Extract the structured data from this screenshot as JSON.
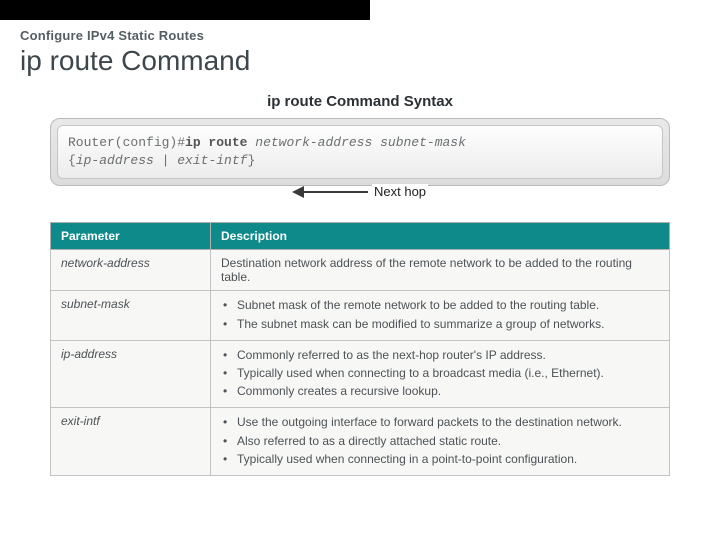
{
  "header": {
    "subheading": "Configure IPv4 Static Routes",
    "heading": "ip route Command"
  },
  "syntax_panel": {
    "title": "ip route Command Syntax",
    "prompt": "Router(config)#",
    "command_bold": "ip route",
    "args_italic": "network-address subnet-mask",
    "line2_open": "{",
    "line2_arg1": "ip-address",
    "line2_sep": " | ",
    "line2_arg2": "exit-intf",
    "line2_close": "}"
  },
  "annotation": {
    "label": "Next hop"
  },
  "param_table": {
    "header_bg": "#0e8a8a",
    "header_fg": "#ffffff",
    "row_bg": "#f7f7f5",
    "border_color": "#c3c3c3",
    "columns": [
      "Parameter",
      "Description"
    ],
    "rows": [
      {
        "param": "network-address",
        "desc_type": "text",
        "desc_text": "Destination network address of the remote network to be added to the routing table."
      },
      {
        "param": "subnet-mask",
        "desc_type": "list",
        "desc_list": [
          "Subnet mask of the remote network to be added to the routing table.",
          "The subnet mask can be modified to summarize a group of networks."
        ]
      },
      {
        "param": "ip-address",
        "desc_type": "list",
        "desc_list": [
          "Commonly referred to as the next-hop router's IP address.",
          "Typically used when connecting to a broadcast media (i.e., Ethernet).",
          "Commonly creates a recursive lookup."
        ]
      },
      {
        "param": "exit-intf",
        "desc_type": "list",
        "desc_list": [
          "Use the outgoing interface to forward packets to the destination network.",
          "Also referred to as a directly attached static route.",
          "Typically used when connecting in a point-to-point configuration."
        ]
      }
    ]
  }
}
